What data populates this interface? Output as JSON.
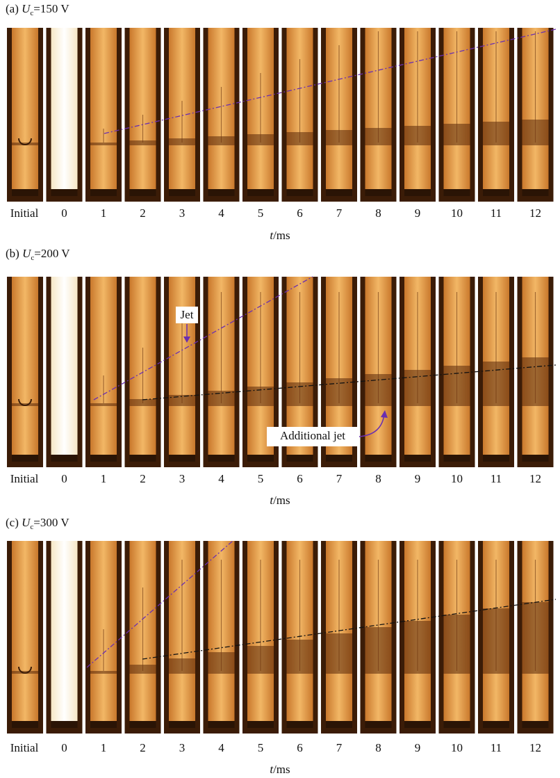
{
  "panels": [
    {
      "label": "(a)",
      "symbol": "U",
      "subscript": "c",
      "value": "=150 V",
      "frame_labels": [
        "Initial",
        "0",
        "1",
        "2",
        "3",
        "4",
        "5",
        "6",
        "7",
        "8",
        "9",
        "10",
        "11",
        "12"
      ],
      "axis_var": "t",
      "axis_unit": "/ms"
    },
    {
      "label": "(b)",
      "symbol": "U",
      "subscript": "c",
      "value": "=200 V",
      "frame_labels": [
        "Initial",
        "0",
        "1",
        "2",
        "3",
        "4",
        "5",
        "6",
        "7",
        "8",
        "9",
        "10",
        "11",
        "12"
      ],
      "axis_var": "t",
      "axis_unit": "/ms",
      "annotations": [
        "Jet",
        "Additional jet"
      ]
    },
    {
      "label": "(c)",
      "symbol": "U",
      "subscript": "c",
      "value": "=300 V",
      "frame_labels": [
        "Initial",
        "0",
        "1",
        "2",
        "3",
        "4",
        "5",
        "6",
        "7",
        "8",
        "9",
        "10",
        "11",
        "12"
      ],
      "axis_var": "t",
      "axis_unit": "/ms"
    }
  ]
}
